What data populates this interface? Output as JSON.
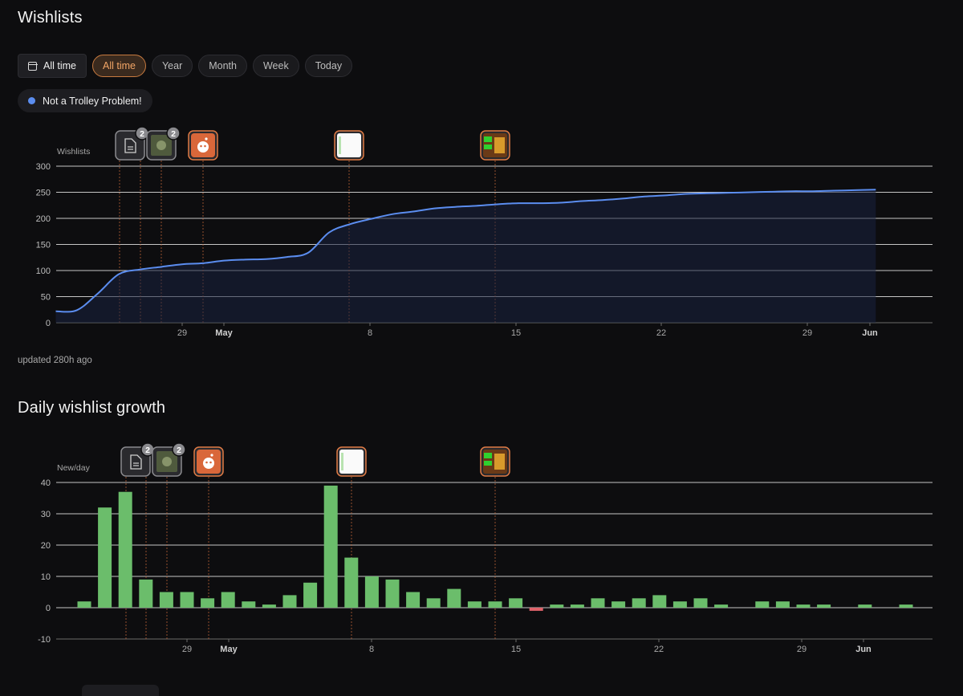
{
  "wishlists_title": "Wishlists",
  "growth_title": "Daily wishlist growth",
  "filters": {
    "main_label": "All time",
    "options": [
      "All time",
      "Year",
      "Month",
      "Week",
      "Today"
    ],
    "active": "All time"
  },
  "legend": {
    "label": "Not a Trolley Problem!",
    "color": "#5b8def"
  },
  "updated_text": "updated 280h ago",
  "colors": {
    "line": "#5b8def",
    "bar_positive": "#6bbd6b",
    "bar_negative": "#e0636b",
    "marker_line": "#c9683a",
    "accent": "#f2a566"
  },
  "events": [
    {
      "icon": "document-icon",
      "count": "2",
      "x_label_offset": 0
    },
    {
      "icon": "game-screenshot-icon",
      "count": "2"
    },
    {
      "icon": "reddit-icon",
      "count": ""
    },
    {
      "icon": "spreadsheet-thumbnail-icon",
      "count": ""
    },
    {
      "icon": "game-cover-thumbnail-icon",
      "count": ""
    }
  ],
  "x_ticks": [
    "29",
    "May",
    "8",
    "15",
    "22",
    "29",
    "Jun"
  ],
  "chart_data": [
    {
      "type": "line",
      "title": "Wishlists",
      "ylabel": "Wishlists",
      "ylim": [
        0,
        300
      ],
      "yticks": [
        0,
        50,
        100,
        150,
        200,
        250,
        300
      ],
      "x": [
        "Apr 24",
        "Apr 25",
        "Apr 26",
        "Apr 27",
        "Apr 28",
        "Apr 29",
        "Apr 30",
        "May 1",
        "May 2",
        "May 3",
        "May 4",
        "May 5",
        "May 6",
        "May 7",
        "May 8",
        "May 9",
        "May 10",
        "May 11",
        "May 12",
        "May 13",
        "May 14",
        "May 15",
        "May 16",
        "May 17",
        "May 18",
        "May 19",
        "May 20",
        "May 21",
        "May 22",
        "May 23",
        "May 24",
        "May 25",
        "May 26",
        "May 27",
        "May 28",
        "May 29",
        "May 30",
        "May 31",
        "Jun 1",
        "Jun 2"
      ],
      "series": [
        {
          "name": "Not a Trolley Problem!",
          "values": [
            22,
            24,
            56,
            93,
            102,
            107,
            112,
            114,
            119,
            121,
            122,
            126,
            134,
            173,
            189,
            199,
            208,
            213,
            219,
            222,
            224,
            227,
            229,
            229,
            230,
            233,
            235,
            238,
            242,
            244,
            247,
            248,
            249,
            250,
            251,
            252,
            252,
            253,
            254,
            255
          ]
        }
      ],
      "grid": true
    },
    {
      "type": "bar",
      "title": "Daily wishlist growth",
      "ylabel": "New/day",
      "ylim": [
        -10,
        40
      ],
      "yticks": [
        -10,
        0,
        10,
        20,
        30,
        40
      ],
      "x": [
        "Apr 24",
        "Apr 25",
        "Apr 26",
        "Apr 27",
        "Apr 28",
        "Apr 29",
        "Apr 30",
        "May 1",
        "May 2",
        "May 3",
        "May 4",
        "May 5",
        "May 6",
        "May 7",
        "May 8",
        "May 9",
        "May 10",
        "May 11",
        "May 12",
        "May 13",
        "May 14",
        "May 15",
        "May 16",
        "May 17",
        "May 18",
        "May 19",
        "May 20",
        "May 21",
        "May 22",
        "May 23",
        "May 24",
        "May 25",
        "May 26",
        "May 27",
        "May 28",
        "May 29",
        "May 30",
        "May 31",
        "Jun 1",
        "Jun 2",
        "Jun 3"
      ],
      "series": [
        {
          "name": "New/day",
          "values": [
            2,
            32,
            37,
            9,
            5,
            5,
            3,
            5,
            2,
            1,
            4,
            8,
            39,
            16,
            10,
            9,
            5,
            3,
            6,
            2,
            2,
            3,
            -1,
            1,
            1,
            3,
            2,
            3,
            4,
            2,
            3,
            1,
            0,
            2,
            2,
            1,
            1,
            0,
            1,
            0,
            1
          ]
        }
      ],
      "grid": true
    }
  ]
}
